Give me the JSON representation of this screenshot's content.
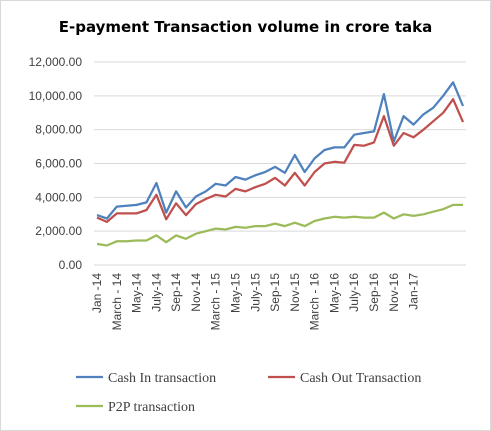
{
  "chart_data": {
    "type": "line",
    "title": "E-payment Transaction volume in crore taka",
    "xlabel": "",
    "ylabel": "",
    "ylim": [
      0,
      12000
    ],
    "yticks": [
      "0.00",
      "2,000.00",
      "4,000.00",
      "6,000.00",
      "8,000.00",
      "10,000.00",
      "12,000.00"
    ],
    "grid": true,
    "legend_position": "bottom",
    "x_tick_labels": [
      "Jan -14",
      "March - 14",
      "May-14",
      "July-14",
      "Sep-14",
      "Nov-14",
      "March - 15",
      "May-15",
      "July-15",
      "Sep-15",
      "Nov-15",
      "March - 16",
      "May-16",
      "July-16",
      "Sep-16",
      "Nov-16",
      "Jan-17"
    ],
    "x": [
      "Jan-14",
      "Feb-14",
      "Mar-14",
      "Apr-14",
      "May-14",
      "Jun-14",
      "Jul-14",
      "Aug-14",
      "Sep-14",
      "Oct-14",
      "Nov-14",
      "Dec-14",
      "Jan-15",
      "Feb-15",
      "Mar-15",
      "Apr-15",
      "May-15",
      "Jun-15",
      "Jul-15",
      "Aug-15",
      "Sep-15",
      "Oct-15",
      "Nov-15",
      "Dec-15",
      "Jan-16",
      "Feb-16",
      "Mar-16",
      "Apr-16",
      "May-16",
      "Jun-16",
      "Jul-16",
      "Aug-16",
      "Sep-16",
      "Oct-16",
      "Nov-16",
      "Dec-16",
      "Jan-17",
      "Feb-17"
    ],
    "series": [
      {
        "name": "Cash In transaction",
        "color": "#4f81bd",
        "values": [
          2950,
          2750,
          3450,
          3500,
          3550,
          3700,
          4850,
          3100,
          4350,
          3400,
          4050,
          4350,
          4800,
          4700,
          5200,
          5050,
          5300,
          5500,
          5800,
          5450,
          6500,
          5500,
          6300,
          6800,
          6950,
          6950,
          7700,
          7800,
          7900,
          10100,
          7300,
          8800,
          8300,
          8900,
          9300,
          10000,
          10800,
          9400
        ]
      },
      {
        "name": "Cash Out Transaction",
        "color": "#c0504d",
        "values": [
          2800,
          2550,
          3050,
          3050,
          3050,
          3250,
          4150,
          2700,
          3650,
          2950,
          3600,
          3900,
          4150,
          4050,
          4500,
          4350,
          4600,
          4800,
          5150,
          4700,
          5450,
          4700,
          5500,
          6000,
          6100,
          6050,
          7100,
          7050,
          7250,
          8800,
          7050,
          7800,
          7550,
          8000,
          8500,
          9000,
          9800,
          8450
        ]
      },
      {
        "name": "P2P transaction",
        "color": "#9bbb59",
        "values": [
          1250,
          1150,
          1400,
          1400,
          1450,
          1450,
          1750,
          1350,
          1750,
          1550,
          1850,
          2000,
          2150,
          2100,
          2250,
          2200,
          2300,
          2300,
          2450,
          2300,
          2500,
          2300,
          2600,
          2750,
          2850,
          2800,
          2850,
          2800,
          2800,
          3100,
          2750,
          3000,
          2900,
          3000,
          3150,
          3300,
          3550,
          3550
        ]
      }
    ]
  }
}
